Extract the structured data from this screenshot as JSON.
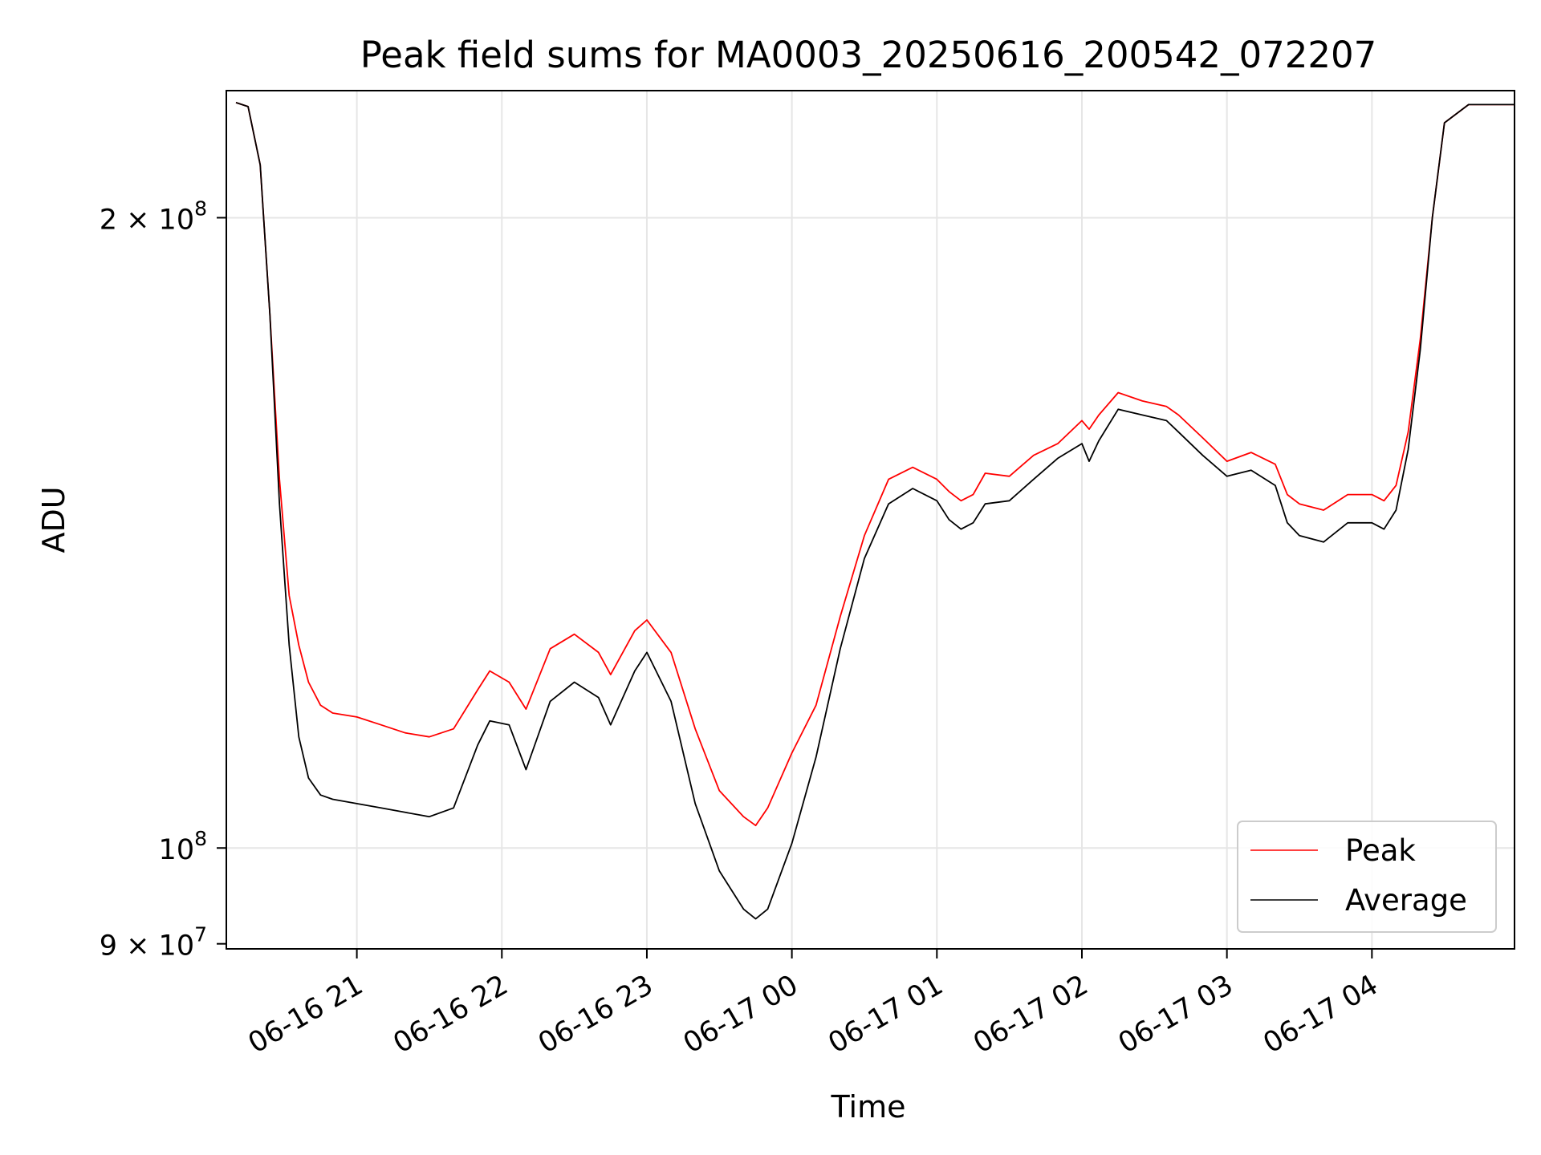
{
  "chart_data": {
    "type": "line",
    "title": "Peak field sums for MA0003_20250616_200542_072207",
    "xlabel": "Time",
    "ylabel": "ADU",
    "y_scale": "log",
    "ylim": [
      89500000,
      230000000
    ],
    "xlim": [
      "2025-06-16 20:06",
      "2025-06-17 04:59"
    ],
    "grid": true,
    "legend_position": "lower-right",
    "x_ticks": [
      {
        "value": "2025-06-16 21:00",
        "label": "06-16 21"
      },
      {
        "value": "2025-06-16 22:00",
        "label": "06-16 22"
      },
      {
        "value": "2025-06-16 23:00",
        "label": "06-16 23"
      },
      {
        "value": "2025-06-17 00:00",
        "label": "06-17 00"
      },
      {
        "value": "2025-06-17 01:00",
        "label": "06-17 01"
      },
      {
        "value": "2025-06-17 02:00",
        "label": "06-17 02"
      },
      {
        "value": "2025-06-17 03:00",
        "label": "06-17 03"
      },
      {
        "value": "2025-06-17 04:00",
        "label": "06-17 04"
      }
    ],
    "y_ticks": [
      {
        "value": 90000000,
        "base": "9 × 10",
        "exp": "7"
      },
      {
        "value": 100000000,
        "base": "10",
        "exp": "8"
      },
      {
        "value": 200000000,
        "base": "2 × 10",
        "exp": "8"
      }
    ],
    "series": [
      {
        "name": "Peak",
        "color": "#ff0000",
        "x": [
          "2025-06-16 20:10",
          "2025-06-16 20:15",
          "2025-06-16 20:20",
          "2025-06-16 20:24",
          "2025-06-16 20:28",
          "2025-06-16 20:32",
          "2025-06-16 20:36",
          "2025-06-16 20:40",
          "2025-06-16 20:45",
          "2025-06-16 20:50",
          "2025-06-16 21:00",
          "2025-06-16 21:10",
          "2025-06-16 21:20",
          "2025-06-16 21:30",
          "2025-06-16 21:40",
          "2025-06-16 21:50",
          "2025-06-16 21:55",
          "2025-06-16 22:03",
          "2025-06-16 22:10",
          "2025-06-16 22:20",
          "2025-06-16 22:30",
          "2025-06-16 22:40",
          "2025-06-16 22:45",
          "2025-06-16 22:55",
          "2025-06-16 23:00",
          "2025-06-16 23:10",
          "2025-06-16 23:20",
          "2025-06-16 23:30",
          "2025-06-16 23:40",
          "2025-06-16 23:45",
          "2025-06-16 23:50",
          "2025-06-17 00:00",
          "2025-06-17 00:10",
          "2025-06-17 00:20",
          "2025-06-17 00:30",
          "2025-06-17 00:40",
          "2025-06-17 00:50",
          "2025-06-17 01:00",
          "2025-06-17 01:05",
          "2025-06-17 01:10",
          "2025-06-17 01:15",
          "2025-06-17 01:20",
          "2025-06-17 01:30",
          "2025-06-17 01:40",
          "2025-06-17 01:50",
          "2025-06-17 02:00",
          "2025-06-17 02:03",
          "2025-06-17 02:07",
          "2025-06-17 02:15",
          "2025-06-17 02:25",
          "2025-06-17 02:35",
          "2025-06-17 02:40",
          "2025-06-17 02:50",
          "2025-06-17 03:00",
          "2025-06-17 03:10",
          "2025-06-17 03:20",
          "2025-06-17 03:25",
          "2025-06-17 03:30",
          "2025-06-17 03:40",
          "2025-06-17 03:50",
          "2025-06-17 04:00",
          "2025-06-17 04:05",
          "2025-06-17 04:10",
          "2025-06-17 04:15",
          "2025-06-17 04:20",
          "2025-06-17 04:25",
          "2025-06-17 04:30",
          "2025-06-17 04:40",
          "2025-06-17 04:50",
          "2025-06-17 04:59"
        ],
        "y": [
          227000000,
          226000000,
          212000000,
          180000000,
          150000000,
          132000000,
          125000000,
          120000000,
          117000000,
          116000000,
          115500000,
          114500000,
          113500000,
          113000000,
          114000000,
          119000000,
          121500000,
          120000000,
          116500000,
          124500000,
          126500000,
          124000000,
          121000000,
          127000000,
          128500000,
          124000000,
          114000000,
          106500000,
          103500000,
          102500000,
          104500000,
          111000000,
          117000000,
          129000000,
          141000000,
          150000000,
          152000000,
          150000000,
          148000000,
          146500000,
          147500000,
          151000000,
          150500000,
          154000000,
          156000000,
          160000000,
          158500000,
          161000000,
          165000000,
          163500000,
          162500000,
          161000000,
          157000000,
          153000000,
          154500000,
          152500000,
          147500000,
          146000000,
          145000000,
          147500000,
          147500000,
          146500000,
          149000000,
          158000000,
          175000000,
          200000000,
          222000000,
          226500000,
          226500000,
          226500000
        ]
      },
      {
        "name": "Average",
        "color": "#000000",
        "x": [
          "2025-06-16 20:10",
          "2025-06-16 20:15",
          "2025-06-16 20:20",
          "2025-06-16 20:24",
          "2025-06-16 20:28",
          "2025-06-16 20:32",
          "2025-06-16 20:36",
          "2025-06-16 20:40",
          "2025-06-16 20:45",
          "2025-06-16 20:50",
          "2025-06-16 21:00",
          "2025-06-16 21:10",
          "2025-06-16 21:20",
          "2025-06-16 21:30",
          "2025-06-16 21:40",
          "2025-06-16 21:50",
          "2025-06-16 21:55",
          "2025-06-16 22:03",
          "2025-06-16 22:10",
          "2025-06-16 22:20",
          "2025-06-16 22:30",
          "2025-06-16 22:40",
          "2025-06-16 22:45",
          "2025-06-16 22:55",
          "2025-06-16 23:00",
          "2025-06-16 23:10",
          "2025-06-16 23:20",
          "2025-06-16 23:30",
          "2025-06-16 23:40",
          "2025-06-16 23:45",
          "2025-06-16 23:50",
          "2025-06-17 00:00",
          "2025-06-17 00:10",
          "2025-06-17 00:20",
          "2025-06-17 00:30",
          "2025-06-17 00:40",
          "2025-06-17 00:50",
          "2025-06-17 01:00",
          "2025-06-17 01:05",
          "2025-06-17 01:10",
          "2025-06-17 01:15",
          "2025-06-17 01:20",
          "2025-06-17 01:30",
          "2025-06-17 01:40",
          "2025-06-17 01:50",
          "2025-06-17 02:00",
          "2025-06-17 02:03",
          "2025-06-17 02:07",
          "2025-06-17 02:15",
          "2025-06-17 02:25",
          "2025-06-17 02:35",
          "2025-06-17 02:40",
          "2025-06-17 02:50",
          "2025-06-17 03:00",
          "2025-06-17 03:10",
          "2025-06-17 03:20",
          "2025-06-17 03:25",
          "2025-06-17 03:30",
          "2025-06-17 03:40",
          "2025-06-17 03:50",
          "2025-06-17 04:00",
          "2025-06-17 04:05",
          "2025-06-17 04:10",
          "2025-06-17 04:15",
          "2025-06-17 04:20",
          "2025-06-17 04:25",
          "2025-06-17 04:30",
          "2025-06-17 04:40",
          "2025-06-17 04:50",
          "2025-06-17 04:59"
        ],
        "y": [
          227000000,
          226000000,
          212000000,
          180000000,
          146000000,
          125000000,
          113000000,
          108000000,
          106000000,
          105500000,
          105000000,
          104500000,
          104000000,
          103500000,
          104500000,
          112000000,
          115000000,
          114500000,
          109000000,
          117500000,
          120000000,
          118000000,
          114500000,
          121500000,
          124000000,
          117500000,
          105000000,
          97500000,
          93500000,
          92500000,
          93500000,
          100500000,
          110500000,
          124500000,
          137500000,
          146000000,
          148500000,
          146500000,
          143500000,
          142000000,
          143000000,
          146000000,
          146500000,
          150000000,
          153500000,
          156000000,
          153000000,
          156500000,
          162000000,
          161000000,
          160000000,
          158000000,
          154000000,
          150500000,
          151500000,
          149000000,
          143000000,
          141000000,
          140000000,
          143000000,
          143000000,
          142000000,
          145000000,
          155000000,
          173000000,
          200000000,
          222000000,
          226500000,
          226500000,
          226500000
        ]
      }
    ]
  }
}
